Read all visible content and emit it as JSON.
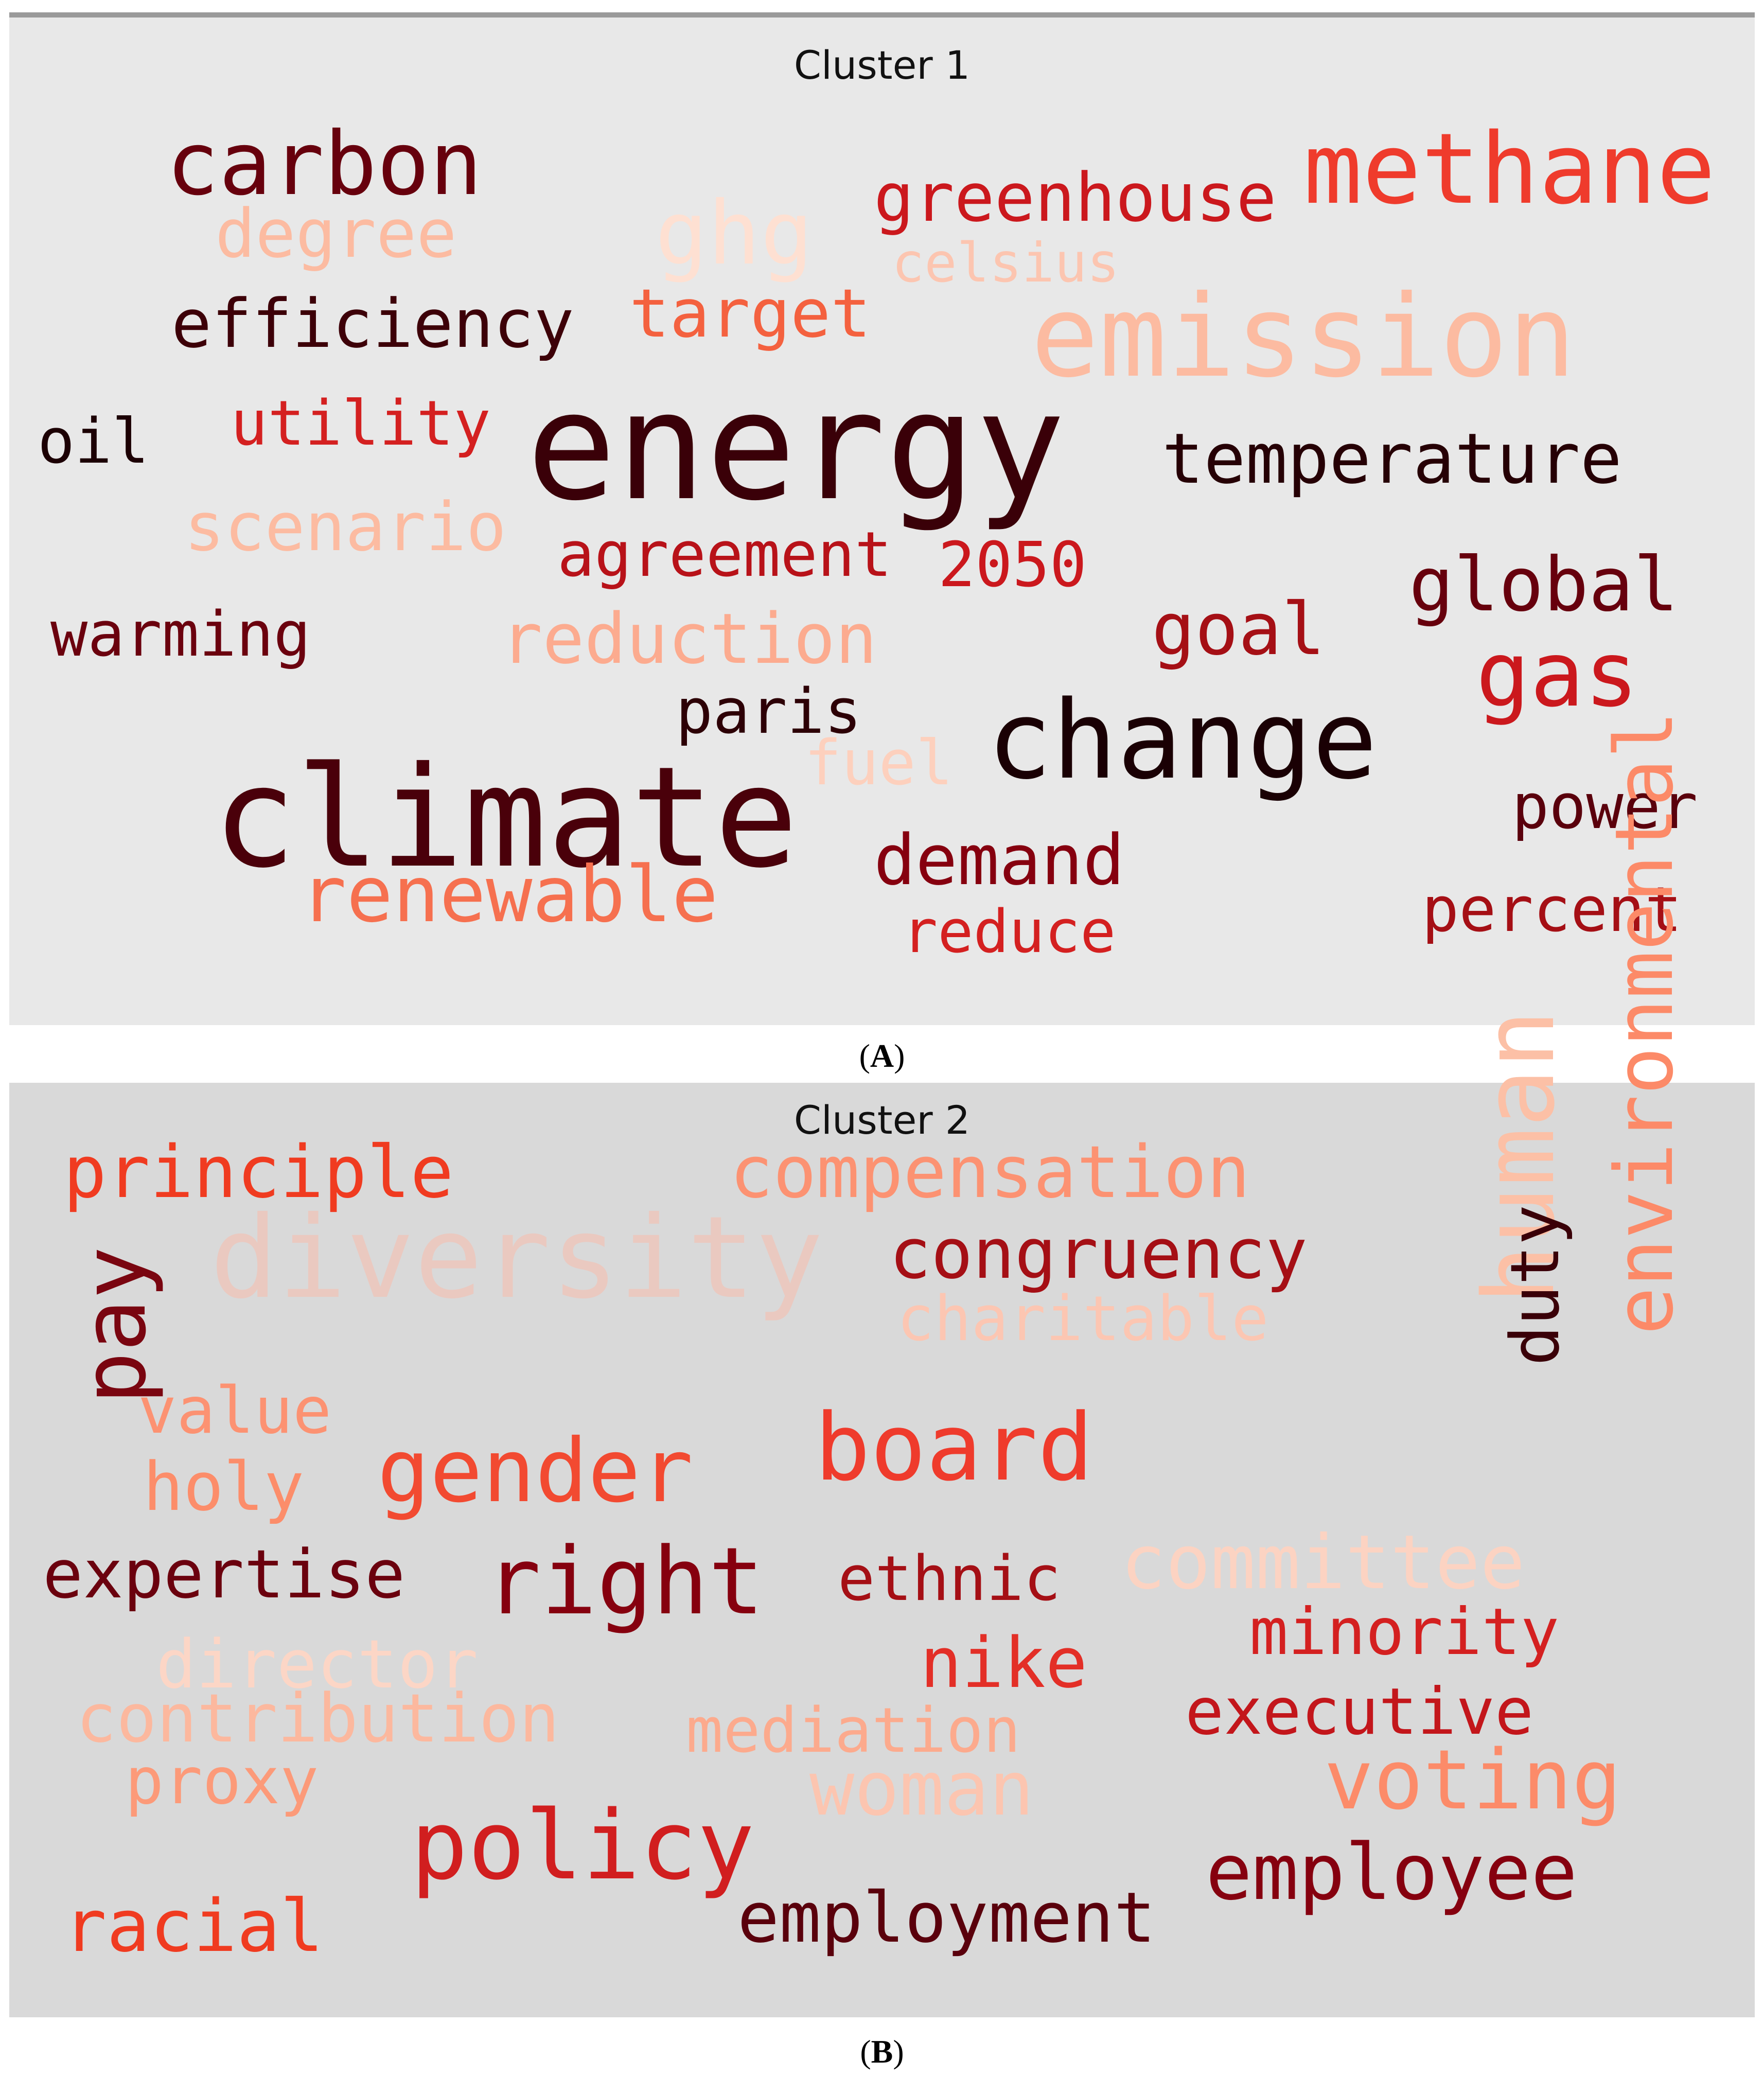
{
  "panels": [
    {
      "title": "Cluster 1",
      "caption_letter": "A",
      "words": [
        {
          "text": "carbon",
          "color": "#67000d"
        },
        {
          "text": "degree",
          "color": "#fcbba1"
        },
        {
          "text": "ghg",
          "color": "#fee0d2"
        },
        {
          "text": "greenhouse",
          "color": "#cb181d"
        },
        {
          "text": "celsius",
          "color": "#fcc5b0"
        },
        {
          "text": "methane",
          "color": "#ef3b2c"
        },
        {
          "text": "efficiency",
          "color": "#3d0008"
        },
        {
          "text": "target",
          "color": "#f4613f"
        },
        {
          "text": "emission",
          "color": "#fcbba1"
        },
        {
          "text": "oil",
          "color": "#1c0004"
        },
        {
          "text": "utility",
          "color": "#d42020"
        },
        {
          "text": "energy",
          "color": "#3a0008"
        },
        {
          "text": "temperature",
          "color": "#260005"
        },
        {
          "text": "scenario",
          "color": "#fcbba1"
        },
        {
          "text": "agreement",
          "color": "#b81219"
        },
        {
          "text": "2050",
          "color": "#cb181d"
        },
        {
          "text": "global",
          "color": "#67000d"
        },
        {
          "text": "warming",
          "color": "#6b010e"
        },
        {
          "text": "reduction",
          "color": "#fcab8f"
        },
        {
          "text": "goal",
          "color": "#a50f15"
        },
        {
          "text": "gas",
          "color": "#cb181d"
        },
        {
          "text": "paris",
          "color": "#2d0006"
        },
        {
          "text": "change",
          "color": "#1a0004"
        },
        {
          "text": "fuel",
          "color": "#fdd0bd"
        },
        {
          "text": "climate",
          "color": "#4a000a"
        },
        {
          "text": "power",
          "color": "#5a000c"
        },
        {
          "text": "demand",
          "color": "#86000f"
        },
        {
          "text": "renewable",
          "color": "#f6704f"
        },
        {
          "text": "reduce",
          "color": "#d42020"
        },
        {
          "text": "percent",
          "color": "#a50f15"
        }
      ]
    },
    {
      "title": "Cluster 2",
      "caption_letter": "B",
      "words": [
        {
          "text": "principle",
          "color": "#f03b20"
        },
        {
          "text": "compensation",
          "color": "#fc9272"
        },
        {
          "text": "diversity",
          "color": "#eac9c0"
        },
        {
          "text": "congruency",
          "color": "#a50f15"
        },
        {
          "text": "charitable",
          "color": "#fcc6b2"
        },
        {
          "text": "human",
          "color": "#fcc0a6"
        },
        {
          "text": "duty",
          "color": "#3a0008"
        },
        {
          "text": "environmental",
          "color": "#fc8a68"
        },
        {
          "text": "pay",
          "color": "#7a0510"
        },
        {
          "text": "value",
          "color": "#fc9272"
        },
        {
          "text": "holy",
          "color": "#fc8d6a"
        },
        {
          "text": "gender",
          "color": "#f24a31"
        },
        {
          "text": "board",
          "color": "#ef3b2c"
        },
        {
          "text": "expertise",
          "color": "#6b010e"
        },
        {
          "text": "right",
          "color": "#86000f"
        },
        {
          "text": "ethnic",
          "color": "#a50f15"
        },
        {
          "text": "committee",
          "color": "#fcd3c2"
        },
        {
          "text": "minority",
          "color": "#d42020"
        },
        {
          "text": "director",
          "color": "#fcd6c6"
        },
        {
          "text": "nike",
          "color": "#e32f27"
        },
        {
          "text": "executive",
          "color": "#c3161b"
        },
        {
          "text": "contribution",
          "color": "#fcb89e"
        },
        {
          "text": "mediation",
          "color": "#fcaa8d"
        },
        {
          "text": "proxy",
          "color": "#fc9a79"
        },
        {
          "text": "woman",
          "color": "#fcc5b0"
        },
        {
          "text": "voting",
          "color": "#fc8b69"
        },
        {
          "text": "policy",
          "color": "#d11e1f"
        },
        {
          "text": "employee",
          "color": "#86000f"
        },
        {
          "text": "racial",
          "color": "#f03b20"
        },
        {
          "text": "employment",
          "color": "#5a000c"
        }
      ]
    }
  ]
}
